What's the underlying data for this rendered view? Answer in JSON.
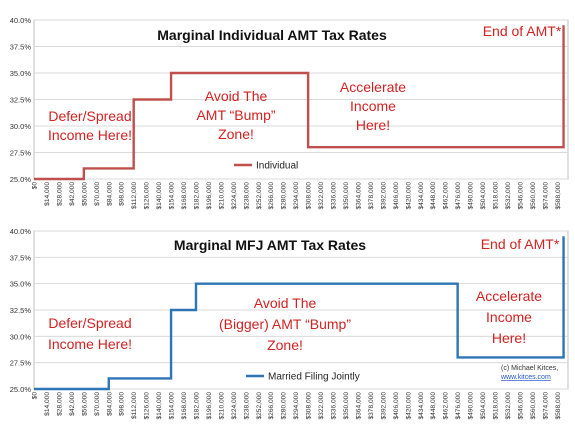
{
  "chart_data": [
    {
      "type": "line",
      "title": "Marginal Individual AMT Tax Rates",
      "xlabel": "",
      "ylabel": "",
      "ylim": [
        25,
        40
      ],
      "xlim": [
        0,
        600000
      ],
      "grid": "horizontal",
      "color": "#c0504d",
      "x_ticks": [
        "$0",
        "$14,000",
        "$28,000",
        "$42,000",
        "$56,000",
        "$70,000",
        "$84,000",
        "$98,000",
        "$112,000",
        "$126,000",
        "$140,000",
        "$154,000",
        "$168,000",
        "$182,000",
        "$196,000",
        "$210,000",
        "$224,000",
        "$238,000",
        "$252,000",
        "$266,000",
        "$280,000",
        "$294,000",
        "$308,000",
        "$322,000",
        "$336,000",
        "$350,000",
        "$364,000",
        "$378,000",
        "$392,000",
        "$406,000",
        "$420,000",
        "$434,000",
        "$448,000",
        "$462,000",
        "$476,000",
        "$490,000",
        "$504,000",
        "$518,000",
        "$532,000",
        "$546,000",
        "$560,000",
        "$574,000",
        "$588,000"
      ],
      "y_ticks": [
        "25.0%",
        "27.5%",
        "30.0%",
        "32.5%",
        "35.0%",
        "37.5%",
        "40.0%"
      ],
      "legend": "bottom-center",
      "series": [
        {
          "name": "Individual",
          "points": [
            [
              0,
              25
            ],
            [
              56000,
              25
            ],
            [
              56000,
              26
            ],
            [
              112000,
              26
            ],
            [
              112000,
              32.5
            ],
            [
              154000,
              32.5
            ],
            [
              154000,
              35
            ],
            [
              308000,
              35
            ],
            [
              308000,
              28
            ],
            [
              595000,
              28
            ],
            [
              595000,
              39.5
            ]
          ]
        }
      ],
      "annotations": [
        {
          "lines": [
            "Defer/Spread",
            "Income Here!"
          ]
        },
        {
          "lines": [
            "Avoid The",
            "AMT “Bump”",
            "Zone!"
          ]
        },
        {
          "lines": [
            "Accelerate",
            "Income",
            "Here!"
          ]
        },
        {
          "lines": [
            "End of AMT*"
          ]
        }
      ]
    },
    {
      "type": "line",
      "title": "Marginal MFJ AMT Tax Rates",
      "xlabel": "",
      "ylabel": "",
      "ylim": [
        25,
        40
      ],
      "xlim": [
        0,
        600000
      ],
      "grid": "horizontal",
      "color": "#2e75b6",
      "x_ticks": [
        "$0",
        "$14,000",
        "$28,000",
        "$42,000",
        "$56,000",
        "$70,000",
        "$84,000",
        "$98,000",
        "$112,000",
        "$126,000",
        "$140,000",
        "$154,000",
        "$168,000",
        "$182,000",
        "$196,000",
        "$210,000",
        "$224,000",
        "$238,000",
        "$252,000",
        "$266,000",
        "$280,000",
        "$294,000",
        "$308,000",
        "$322,000",
        "$336,000",
        "$350,000",
        "$364,000",
        "$378,000",
        "$392,000",
        "$406,000",
        "$420,000",
        "$434,000",
        "$448,000",
        "$462,000",
        "$476,000",
        "$490,000",
        "$504,000",
        "$518,000",
        "$532,000",
        "$546,000",
        "$560,000",
        "$574,000",
        "$588,000"
      ],
      "y_ticks": [
        "25.0%",
        "27.5%",
        "30.0%",
        "32.5%",
        "35.0%",
        "37.5%",
        "40.0%"
      ],
      "legend": "bottom-center",
      "series": [
        {
          "name": "Married Filing Jointly",
          "points": [
            [
              0,
              25
            ],
            [
              84000,
              25
            ],
            [
              84000,
              26
            ],
            [
              154000,
              26
            ],
            [
              154000,
              32.5
            ],
            [
              182000,
              32.5
            ],
            [
              182000,
              35
            ],
            [
              476000,
              35
            ],
            [
              476000,
              28
            ],
            [
              595000,
              28
            ],
            [
              595000,
              39.5
            ]
          ]
        }
      ],
      "annotations": [
        {
          "lines": [
            "Defer/Spread",
            "Income Here!"
          ]
        },
        {
          "lines": [
            "Avoid The",
            "(Bigger) AMT “Bump”",
            "Zone!"
          ]
        },
        {
          "lines": [
            "Accelerate",
            "Income",
            "Here!"
          ]
        },
        {
          "lines": [
            "End of AMT*"
          ]
        }
      ],
      "credit": {
        "text": "(c) Michael Kitces,",
        "link": "www.kitces.com"
      }
    }
  ]
}
